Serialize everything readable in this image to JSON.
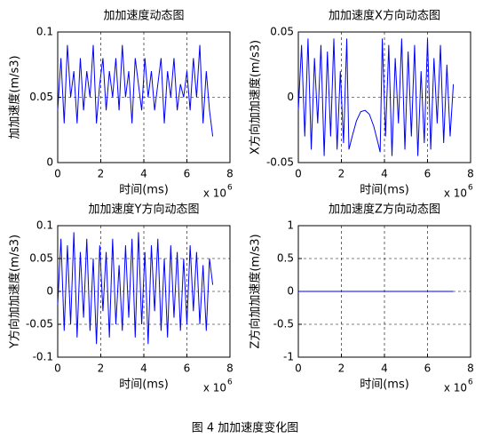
{
  "chart_data": [
    {
      "type": "line",
      "title": "加加速度动态图",
      "x_label": "时间(ms)",
      "y_label": "加加速度(m/s3)",
      "x_exponent_label": "x 10",
      "x_exponent": "6",
      "x": [
        0,
        0.15,
        0.3,
        0.45,
        0.6,
        0.75,
        0.9,
        1.05,
        1.2,
        1.35,
        1.5,
        1.65,
        1.8,
        1.95,
        2.1,
        2.25,
        2.4,
        2.55,
        2.7,
        2.85,
        3,
        3.15,
        3.3,
        3.45,
        3.6,
        3.75,
        3.9,
        4.05,
        4.2,
        4.35,
        4.5,
        4.65,
        4.8,
        4.95,
        5.1,
        5.25,
        5.4,
        5.55,
        5.7,
        5.85,
        6,
        6.15,
        6.3,
        6.45,
        6.6,
        6.75,
        6.9,
        7.05,
        7.2
      ],
      "values": [
        0.04,
        0.08,
        0.03,
        0.09,
        0.05,
        0.07,
        0.03,
        0.08,
        0.04,
        0.07,
        0.05,
        0.09,
        0.03,
        0.06,
        0.08,
        0.04,
        0.07,
        0.05,
        0.08,
        0.04,
        0.09,
        0.05,
        0.07,
        0.03,
        0.08,
        0.06,
        0.04,
        0.08,
        0.05,
        0.07,
        0.04,
        0.06,
        0.08,
        0.03,
        0.07,
        0.05,
        0.08,
        0.04,
        0.06,
        0.05,
        0.07,
        0.04,
        0.08,
        0.05,
        0.09,
        0.03,
        0.07,
        0.04,
        0.02
      ],
      "color": "#0000ff",
      "xlim": [
        0,
        8
      ],
      "xticks": [
        0,
        2,
        4,
        6,
        8
      ],
      "ylim": [
        0,
        0.1
      ],
      "yticks": [
        0,
        0.05,
        0.1
      ],
      "grid": true
    },
    {
      "type": "line",
      "title": "加加速度X方向动态图",
      "x_label": "时间(ms)",
      "y_label": "X方向加加速度(m/s3)",
      "x_exponent_label": "x 10",
      "x_exponent": "6",
      "x": [
        0,
        0.15,
        0.3,
        0.45,
        0.6,
        0.75,
        0.9,
        1.05,
        1.2,
        1.35,
        1.5,
        1.65,
        1.8,
        1.95,
        2.1,
        2.25,
        2.35,
        2.5,
        2.7,
        2.9,
        3.1,
        3.3,
        3.5,
        3.7,
        3.8,
        3.9,
        4.05,
        4.2,
        4.35,
        4.5,
        4.65,
        4.8,
        4.95,
        5.1,
        5.25,
        5.4,
        5.55,
        5.7,
        5.85,
        6,
        6.15,
        6.3,
        6.45,
        6.6,
        6.75,
        6.9,
        7.05,
        7.2
      ],
      "values": [
        -0.01,
        0.04,
        -0.03,
        0.045,
        -0.04,
        0.03,
        -0.02,
        0.04,
        -0.045,
        0.035,
        -0.03,
        0.045,
        -0.04,
        0.02,
        -0.035,
        0.045,
        -0.04,
        -0.03,
        -0.018,
        -0.011,
        -0.01,
        -0.013,
        -0.022,
        -0.035,
        -0.042,
        0.045,
        -0.03,
        0.04,
        -0.045,
        0.03,
        -0.02,
        0.045,
        -0.04,
        0.035,
        -0.03,
        0.04,
        -0.045,
        0.02,
        -0.035,
        0.045,
        -0.04,
        0.03,
        -0.02,
        0.04,
        -0.035,
        0.025,
        -0.03,
        0.01
      ],
      "color": "#0000ff",
      "xlim": [
        0,
        8
      ],
      "xticks": [
        0,
        2,
        4,
        6,
        8
      ],
      "ylim": [
        -0.05,
        0.05
      ],
      "yticks": [
        -0.05,
        0,
        0.05
      ],
      "grid": true
    },
    {
      "type": "line",
      "title": "加加速度Y方向动态图",
      "x_label": "时间(ms)",
      "y_label": "Y方向加加速度(m/s3)",
      "x_exponent_label": "x 10",
      "x_exponent": "6",
      "x": [
        0,
        0.15,
        0.3,
        0.45,
        0.6,
        0.75,
        0.9,
        1.05,
        1.2,
        1.35,
        1.5,
        1.65,
        1.8,
        1.95,
        2.1,
        2.25,
        2.4,
        2.55,
        2.7,
        2.85,
        3,
        3.15,
        3.3,
        3.45,
        3.6,
        3.75,
        3.9,
        4.05,
        4.2,
        4.35,
        4.5,
        4.65,
        4.8,
        4.95,
        5.1,
        5.25,
        5.4,
        5.55,
        5.7,
        5.85,
        6,
        6.15,
        6.3,
        6.45,
        6.6,
        6.75,
        6.9,
        7.05,
        7.2
      ],
      "values": [
        -0.02,
        0.08,
        -0.06,
        0.07,
        -0.05,
        0.09,
        -0.07,
        0.06,
        -0.04,
        0.08,
        -0.06,
        0.05,
        -0.08,
        0.07,
        -0.03,
        0.06,
        -0.07,
        0.08,
        -0.05,
        0.04,
        -0.06,
        0.07,
        -0.04,
        0.08,
        -0.07,
        0.09,
        -0.05,
        0.06,
        -0.08,
        0.07,
        -0.03,
        0.08,
        -0.06,
        0.05,
        -0.07,
        0.07,
        -0.04,
        0.06,
        -0.06,
        0.05,
        -0.05,
        0.07,
        -0.03,
        0.06,
        -0.05,
        0.04,
        -0.06,
        0.05,
        0.01
      ],
      "color": "#0000ff",
      "xlim": [
        0,
        8
      ],
      "xticks": [
        0,
        2,
        4,
        6,
        8
      ],
      "ylim": [
        -0.1,
        0.1
      ],
      "yticks": [
        -0.1,
        -0.05,
        0,
        0.05,
        0.1
      ],
      "grid": true
    },
    {
      "type": "line",
      "title": "加加速度Z方向动态图",
      "x_label": "时间(ms)",
      "y_label": "Z方向加加速度(m/s3)",
      "x_exponent_label": "x 10",
      "x_exponent": "6",
      "x": [
        0,
        7.2
      ],
      "values": [
        0,
        0
      ],
      "color": "#0000ff",
      "xlim": [
        0,
        8
      ],
      "xticks": [
        0,
        2,
        4,
        6,
        8
      ],
      "ylim": [
        -1,
        1
      ],
      "yticks": [
        -1,
        -0.5,
        0,
        0.5,
        1
      ],
      "grid": true
    }
  ],
  "caption": "图 4  加加速度变化图"
}
